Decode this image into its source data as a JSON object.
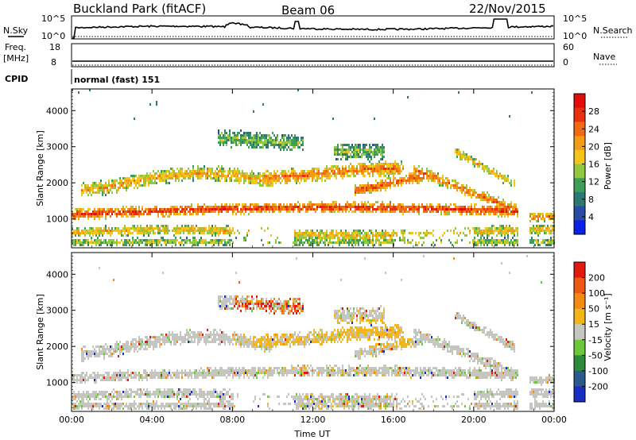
{
  "header": {
    "station": "Buckland Park (fitACF)",
    "beam": "Beam 06",
    "date": "22/Nov/2015"
  },
  "strip_panels": {
    "nsky": {
      "label": "N.Sky",
      "ticks": [
        "10^5",
        "10^0"
      ],
      "right_label": "N.Search",
      "right_ticks": [
        "10^5",
        "10^0"
      ]
    },
    "freq": {
      "label_line1": "Freq.",
      "label_line2": "[MHz]",
      "ticks": [
        "18",
        "8"
      ],
      "right_label": "Nave",
      "right_ticks": [
        "60",
        "0"
      ]
    },
    "cpid": {
      "label": "CPID",
      "value": "normal (fast) 151"
    }
  },
  "chart_data": [
    {
      "type": "heatmap",
      "panel": "power",
      "ylabel": "Slant Range [km]",
      "ylim": [
        200,
        4600
      ],
      "y_ticks": [
        "1000",
        "2000",
        "3000",
        "4000"
      ],
      "x_ticks": [
        "00:00",
        "04:00",
        "08:00",
        "12:00",
        "16:00",
        "20:00",
        "00:00"
      ],
      "colorbar": {
        "label": "Power [dB]",
        "ticks": [
          "4",
          "8",
          "12",
          "16",
          "20",
          "24",
          "28"
        ],
        "colors": [
          "#0b21e6",
          "#2a4ba6",
          "#2c7a72",
          "#3f9f58",
          "#93c940",
          "#f3c41a",
          "#f39a17",
          "#f06a14",
          "#e8300d",
          "#e00d0d"
        ]
      },
      "bands": [
        {
          "range_km": [
            1050,
            1400
          ],
          "time_h": [
            0,
            22
          ],
          "power_db": 26
        },
        {
          "range_km": [
            500,
            900
          ],
          "time_h": [
            0,
            24
          ],
          "power_db": 18
        },
        {
          "range_km": [
            1800,
            2400
          ],
          "time_h": [
            1,
            10
          ],
          "power_db": 20
        },
        {
          "range_km": [
            2200,
            2700
          ],
          "time_h": [
            10,
            18
          ],
          "power_db": 22
        },
        {
          "range_km": [
            1200,
            2600
          ],
          "time_h": [
            16,
            22
          ],
          "power_db": 20
        },
        {
          "range_km": [
            3000,
            3600
          ],
          "time_h": [
            8,
            12
          ],
          "power_db": 12
        }
      ]
    },
    {
      "type": "heatmap",
      "panel": "velocity",
      "ylabel": "Slant Range [km]",
      "ylim": [
        200,
        4600
      ],
      "y_ticks": [
        "1000",
        "2000",
        "3000",
        "4000"
      ],
      "x_ticks": [
        "00:00",
        "04:00",
        "08:00",
        "12:00",
        "16:00",
        "20:00",
        "00:00"
      ],
      "xlabel": "Time UT",
      "colorbar": {
        "label": "Velocity [m s⁻¹]",
        "ticks": [
          "200",
          "100",
          "50",
          "15",
          "-15",
          "-50",
          "-100",
          "-200"
        ],
        "colors": [
          "#1a2fbf",
          "#2a5a8a",
          "#2d8a3a",
          "#6cc83a",
          "#c6c6c0",
          "#f2b51a",
          "#f28a14",
          "#ee5a12",
          "#e01a0e"
        ]
      }
    }
  ]
}
